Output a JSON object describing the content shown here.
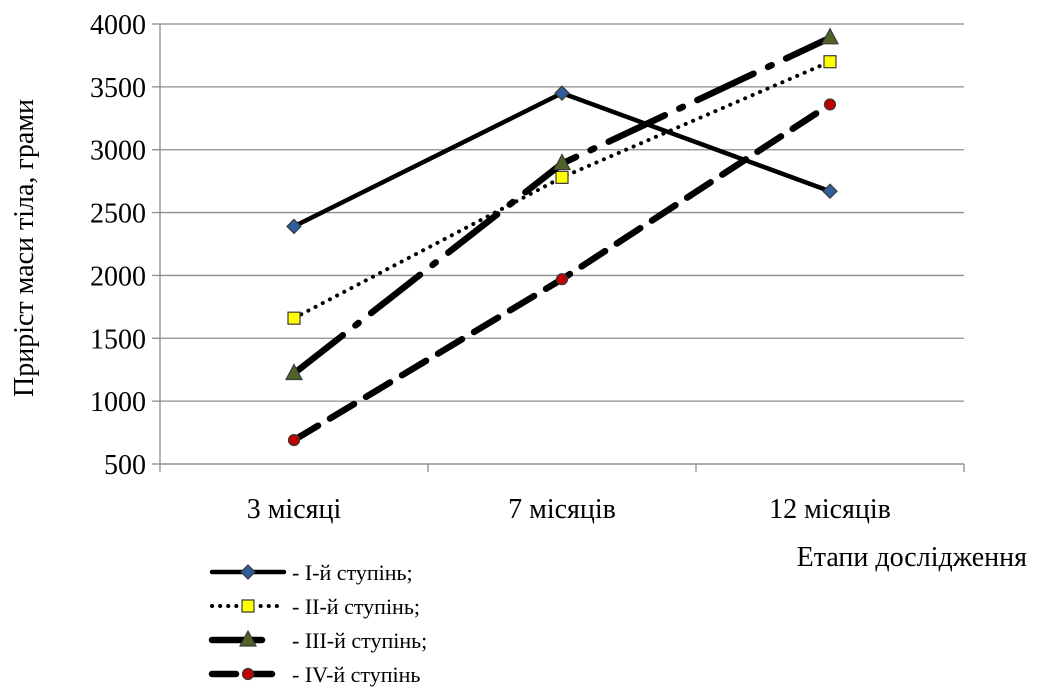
{
  "chart_data": {
    "type": "line",
    "title": "",
    "xlabel": "Етапи дослідження",
    "ylabel": "Приріст  маси тіла, грами",
    "categories": [
      "3 місяці",
      "7 місяців",
      "12 місяців"
    ],
    "ylim": [
      500,
      4000
    ],
    "yticks": [
      500,
      1000,
      1500,
      2000,
      2500,
      3000,
      3500,
      4000
    ],
    "grid": "horizontal",
    "legend_position": "bottom-left",
    "series": [
      {
        "name": "- І-й ступінь;",
        "values": [
          2390,
          3450,
          2670
        ],
        "line_style": "solid",
        "marker": "diamond",
        "marker_color": "#2e5e9c"
      },
      {
        "name": "- ІІ-й ступінь;",
        "values": [
          1660,
          2780,
          3700
        ],
        "line_style": "dotted",
        "marker": "square",
        "marker_color": "#ffff00"
      },
      {
        "name": "- ІІІ-й ступінь;",
        "values": [
          1220,
          2890,
          3890
        ],
        "line_style": "long-dash-dot",
        "marker": "triangle",
        "marker_color": "#4f6228"
      },
      {
        "name": "- IV-й ступінь",
        "values": [
          690,
          1970,
          3360
        ],
        "line_style": "dash",
        "marker": "circle",
        "marker_color": "#c00000"
      }
    ]
  }
}
